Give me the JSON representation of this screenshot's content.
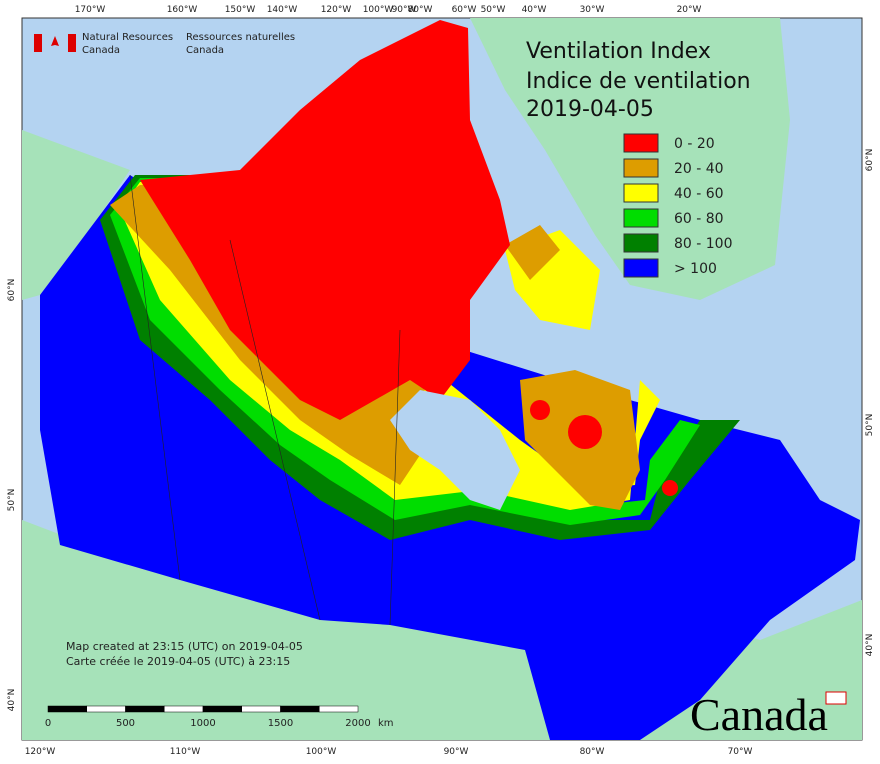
{
  "header": {
    "org_en": [
      "Natural Resources",
      "Canada"
    ],
    "org_fr": [
      "Ressources naturelles",
      "Canada"
    ]
  },
  "title": [
    "Ventilation Index",
    "Indice de ventilation",
    "2019-04-05"
  ],
  "legend": [
    {
      "label": "0 - 20",
      "color": "#ff0000"
    },
    {
      "label": "20 - 40",
      "color": "#dd9d00"
    },
    {
      "label": "40 - 60",
      "color": "#ffff00"
    },
    {
      "label": "60 - 80",
      "color": "#00dd00"
    },
    {
      "label": "80 - 100",
      "color": "#008000"
    },
    {
      "label": "> 100",
      "color": "#0000ff"
    }
  ],
  "top_lon_labels": [
    "170°W",
    "160°W",
    "150°W",
    "140°W",
    "120°W",
    "100°W",
    "90°W",
    "80°W",
    "60°W",
    "50°W",
    "40°W",
    "30°W",
    "20°W"
  ],
  "bottom_lon_labels": [
    "120°W",
    "110°W",
    "100°W",
    "90°W",
    "80°W",
    "70°W"
  ],
  "right_lat_labels": [
    "60°N",
    "50°N",
    "40°N"
  ],
  "left_lat_labels": [
    "60°N",
    "50°N",
    "40°N"
  ],
  "footer": [
    "Map created at 23:15 (UTC) on 2019-04-05",
    "Carte créée le 2019-04-05 (UTC) à 23:15"
  ],
  "scale": {
    "ticks": [
      0,
      500,
      1000,
      1500,
      2000
    ],
    "unit": "km"
  },
  "wordmark": "Canada"
}
